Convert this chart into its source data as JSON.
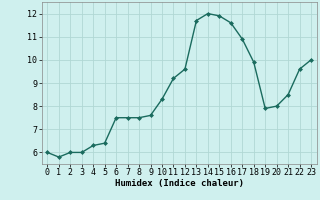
{
  "x": [
    0,
    1,
    2,
    3,
    4,
    5,
    6,
    7,
    8,
    9,
    10,
    11,
    12,
    13,
    14,
    15,
    16,
    17,
    18,
    19,
    20,
    21,
    22,
    23
  ],
  "y": [
    6.0,
    5.8,
    6.0,
    6.0,
    6.3,
    6.4,
    7.5,
    7.5,
    7.5,
    7.6,
    8.3,
    9.2,
    9.6,
    11.7,
    12.0,
    11.9,
    11.6,
    10.9,
    9.9,
    7.9,
    8.0,
    8.5,
    9.6,
    10.0
  ],
  "line_color": "#1a6b5e",
  "marker": "D",
  "marker_size": 2.0,
  "line_width": 1.0,
  "bg_color": "#cff0ee",
  "grid_color": "#b0d8d4",
  "xlabel": "Humidex (Indice chaleur)",
  "xlim": [
    -0.5,
    23.5
  ],
  "ylim": [
    5.5,
    12.5
  ],
  "yticks": [
    6,
    7,
    8,
    9,
    10,
    11,
    12
  ],
  "xticks": [
    0,
    1,
    2,
    3,
    4,
    5,
    6,
    7,
    8,
    9,
    10,
    11,
    12,
    13,
    14,
    15,
    16,
    17,
    18,
    19,
    20,
    21,
    22,
    23
  ],
  "xlabel_fontsize": 6.5,
  "tick_fontsize": 6.0
}
